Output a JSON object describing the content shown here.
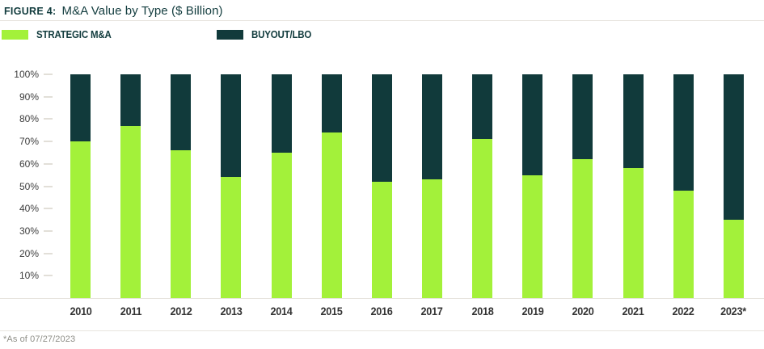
{
  "header": {
    "figure_label": "FIGURE 4:",
    "title": "M&A Value by Type ($ Billion)"
  },
  "chart_data": {
    "type": "bar",
    "subtype": "stacked-100-percent",
    "title": "M&A Value by Type ($ Billion)",
    "categories": [
      "2010",
      "2011",
      "2012",
      "2013",
      "2014",
      "2015",
      "2016",
      "2017",
      "2018",
      "2019",
      "2020",
      "2021",
      "2022",
      "2023*"
    ],
    "series": [
      {
        "name": "STRATEGIC M&A",
        "color": "#a3f13a",
        "values": [
          70,
          77,
          66,
          54,
          65,
          74,
          52,
          53,
          71,
          55,
          62,
          58,
          48,
          35
        ]
      },
      {
        "name": "BUYOUT/LBO",
        "color": "#113a3b",
        "values": [
          30,
          23,
          34,
          46,
          35,
          26,
          48,
          47,
          29,
          45,
          38,
          42,
          52,
          65
        ]
      }
    ],
    "xlabel": "",
    "ylabel": "",
    "ylim": [
      0,
      100
    ],
    "yticks": [
      100,
      90,
      80,
      70,
      60,
      50,
      40,
      30,
      20,
      10
    ],
    "ytick_suffix": "%",
    "grid": false,
    "legend_position": "top"
  },
  "footnote": "*As of 07/27/2023"
}
